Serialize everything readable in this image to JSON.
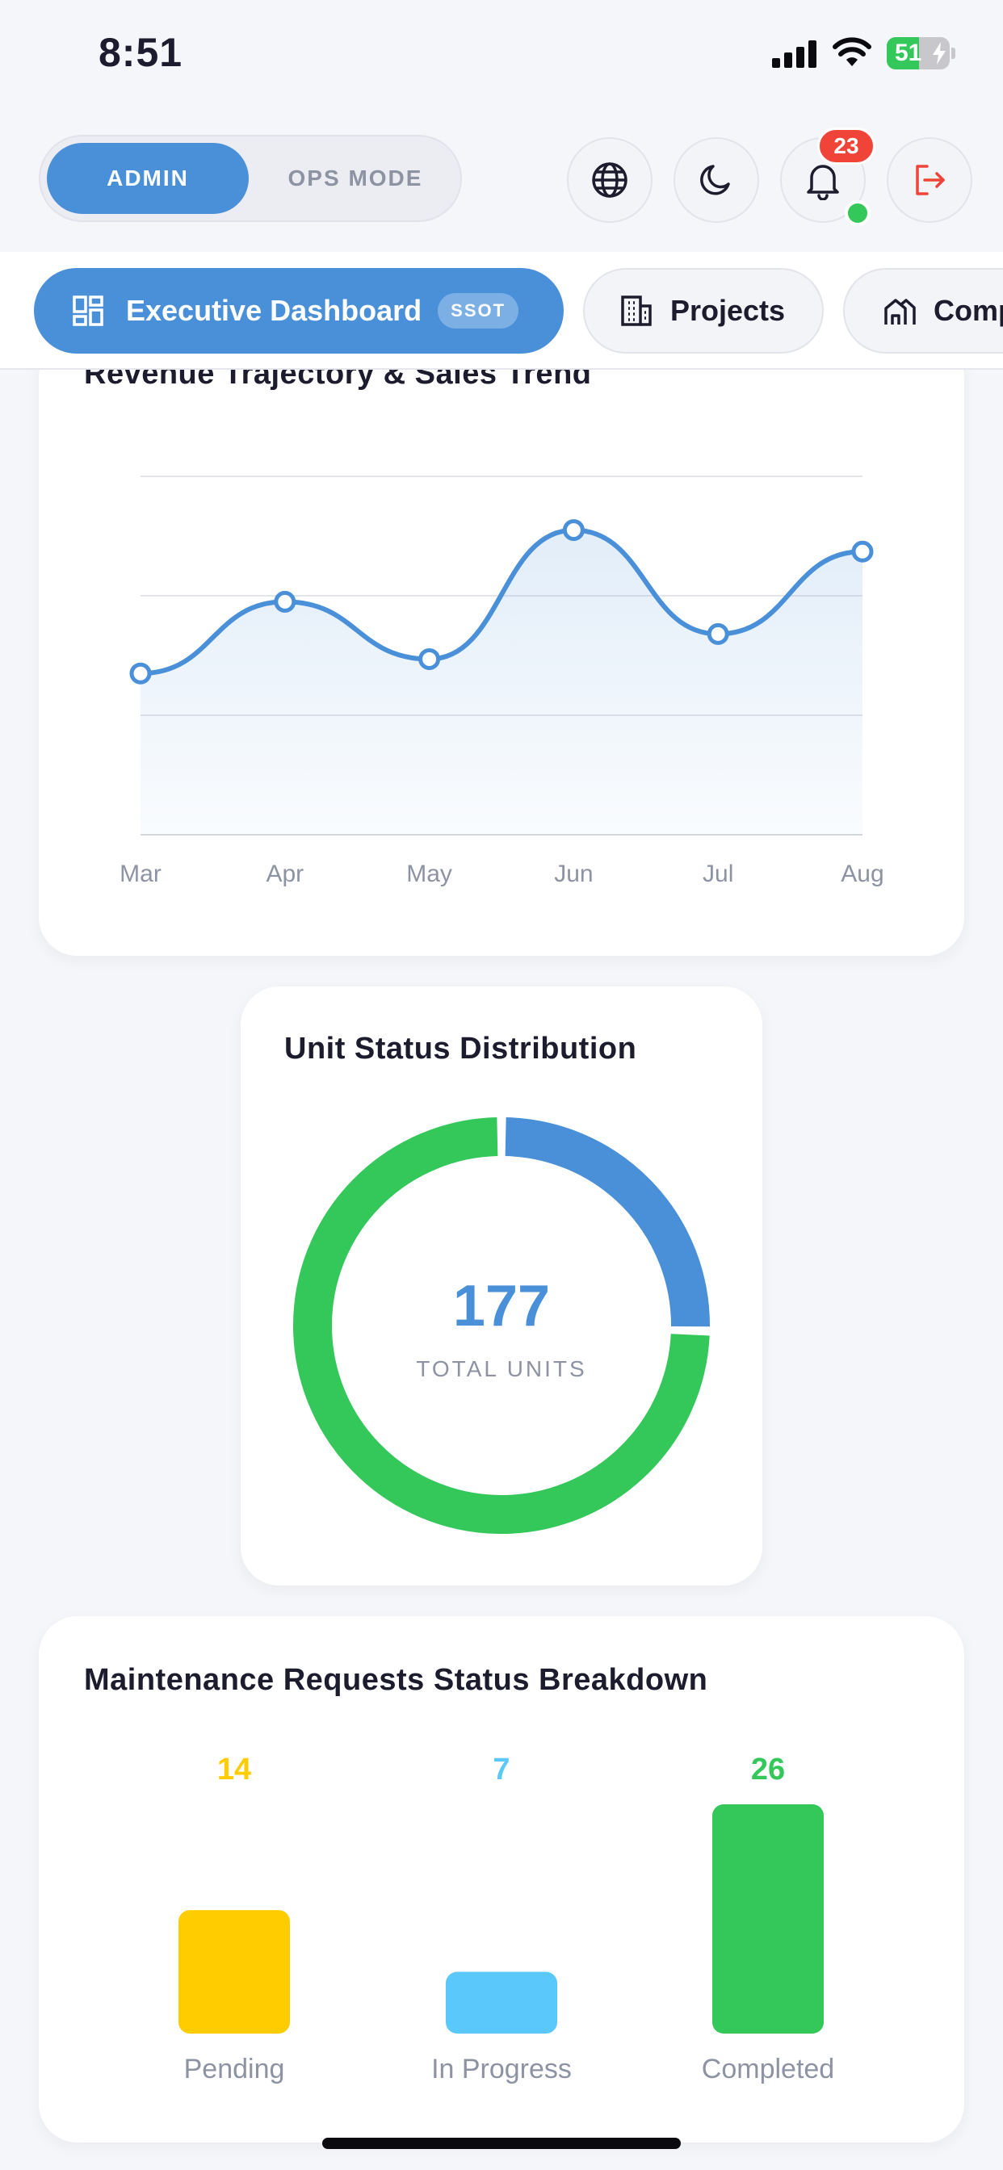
{
  "status_bar": {
    "time": "8:51",
    "battery": "51",
    "battery_level": 0.51
  },
  "header": {
    "mode_toggle": {
      "active": "ADMIN",
      "inactive": "OPS MODE"
    },
    "notification_count": "23",
    "icons": [
      "globe-icon",
      "moon-icon",
      "bell-icon",
      "logout-icon"
    ]
  },
  "nav": {
    "tabs": [
      {
        "label": "Executive Dashboard",
        "badge": "SSOT",
        "icon": "dashboard-icon",
        "active": true
      },
      {
        "label": "Projects",
        "icon": "building-icon",
        "active": false
      },
      {
        "label": "Companies",
        "icon": "houses-icon",
        "active": false
      }
    ]
  },
  "revenue_card": {
    "title": "Revenue Trajectory & Sales Trend"
  },
  "units_card": {
    "title": "Unit Status Distribution",
    "total": "177",
    "total_label": "TOTAL UNITS"
  },
  "maintenance_card": {
    "title": "Maintenance Requests Status Breakdown"
  },
  "colors": {
    "accent": "#4A90D9",
    "green": "#34C759",
    "yellow": "#FFCC00",
    "light_blue": "#5AC8FA",
    "red": "#F04438",
    "muted": "#8E93A3"
  },
  "chart_data": [
    {
      "type": "area",
      "title": "Revenue Trajectory & Sales Trend",
      "categories": [
        "Mar",
        "Apr",
        "May",
        "Jun",
        "Jul",
        "Aug"
      ],
      "values": [
        45,
        65,
        49,
        85,
        56,
        79
      ],
      "ylim": [
        0,
        100
      ],
      "grid": true
    },
    {
      "type": "pie",
      "title": "Unit Status Distribution",
      "total": 177,
      "slices": [
        {
          "color": "#4A90D9",
          "value": 45
        },
        {
          "color": "#34C759",
          "value": 132
        }
      ]
    },
    {
      "type": "bar",
      "title": "Maintenance Requests Status Breakdown",
      "categories": [
        "Pending",
        "In Progress",
        "Completed"
      ],
      "values": [
        14,
        7,
        26
      ],
      "colors": [
        "#FFCC00",
        "#5AC8FA",
        "#34C759"
      ]
    }
  ]
}
